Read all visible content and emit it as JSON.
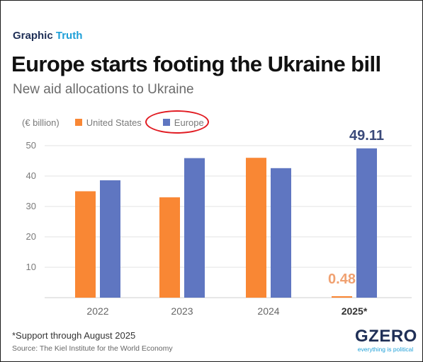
{
  "header": {
    "kicker_main": "Graphic",
    "kicker_accent": "Truth",
    "title": "Europe starts footing the Ukraine bill",
    "subtitle": "New aid allocations to Ukraine"
  },
  "legend": {
    "unit": "(€ billion)",
    "items": [
      "United States",
      "Europe"
    ]
  },
  "colors": {
    "us": "#f98734",
    "europe": "#5f76c1",
    "highlight_circle": "#e11b22"
  },
  "chart_data": {
    "type": "bar",
    "categories": [
      "2022",
      "2023",
      "2024",
      "2025*"
    ],
    "series": [
      {
        "name": "United States",
        "values": [
          35.0,
          33.0,
          46.0,
          0.48
        ]
      },
      {
        "name": "Europe",
        "values": [
          38.6,
          45.9,
          42.6,
          49.11
        ]
      }
    ],
    "data_labels": [
      {
        "category": "2025*",
        "series": "United States",
        "text": "0.48"
      },
      {
        "category": "2025*",
        "series": "Europe",
        "text": "49.11"
      }
    ],
    "y_ticks": [
      "10",
      "20",
      "30",
      "40",
      "50"
    ],
    "ylim": [
      0,
      55
    ],
    "grid": true,
    "legend_position": "top-left",
    "title": "New aid allocations to Ukraine",
    "ylabel": "(€ billion)",
    "xlabel": ""
  },
  "footer": {
    "footnote": "*Support through August 2025",
    "source": "Source: The Kiel Institute for the World Economy",
    "logo": "GZERO",
    "logo_tagline": "everything is political"
  }
}
